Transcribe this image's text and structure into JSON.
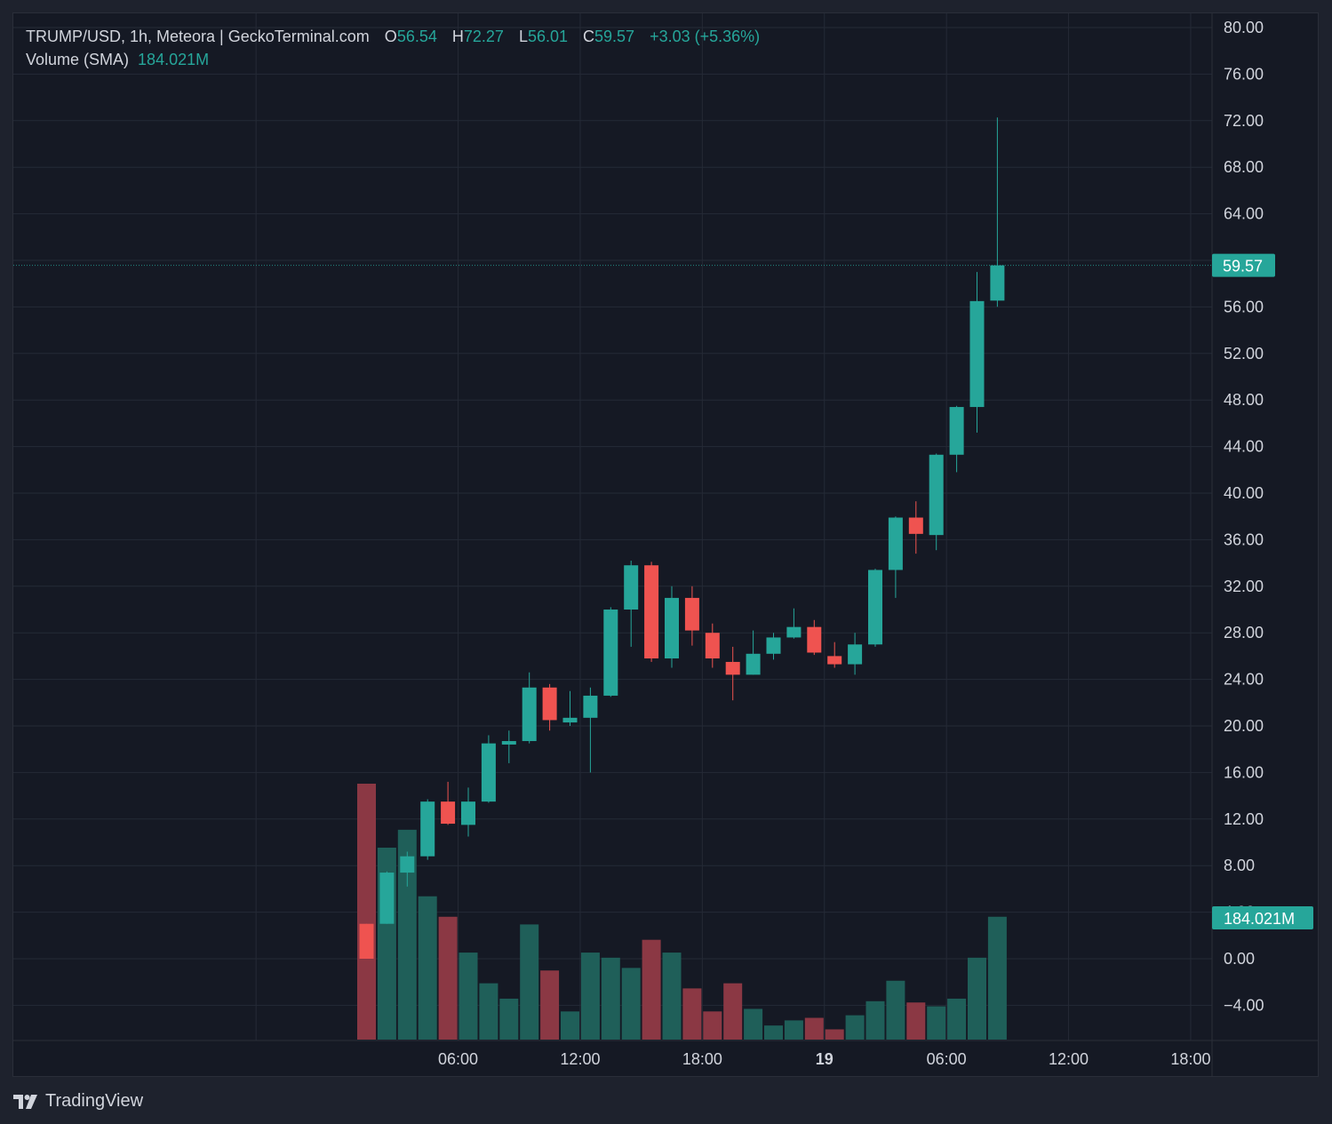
{
  "legend": {
    "symbol": "TRUMP/USD, 1h, Meteora | GeckoTerminal.com",
    "o_label": "O",
    "o": "56.54",
    "h_label": "H",
    "h": "72.27",
    "l_label": "L",
    "l": "56.01",
    "c_label": "C",
    "c": "59.57",
    "change": "+3.03 (+5.36%)",
    "volume_label": "Volume (SMA)",
    "volume_value": "184.021M"
  },
  "branding": {
    "name": "TradingView"
  },
  "colors": {
    "up": "#26a69a",
    "down": "#ef5350",
    "vol_up": "#1f5f59",
    "vol_down": "#8b3844",
    "grid": "#252a36",
    "text": "#d1d4dc",
    "bg": "#151924"
  },
  "chart_data": {
    "type": "candlestick",
    "interval": "1h",
    "y_ticks": [
      "80.00",
      "76.00",
      "72.00",
      "68.00",
      "64.00",
      "56.00",
      "52.00",
      "48.00",
      "44.00",
      "40.00",
      "36.00",
      "32.00",
      "28.00",
      "24.00",
      "20.00",
      "16.00",
      "12.00",
      "8.00",
      "0.00",
      "−4.00"
    ],
    "y_tick_values": [
      80,
      76,
      72,
      68,
      64,
      56,
      52,
      48,
      44,
      40,
      36,
      32,
      28,
      24,
      20,
      16,
      12,
      8,
      0,
      -4
    ],
    "ylim": [
      -7,
      81
    ],
    "x_ticks": [
      {
        "label": "06:00",
        "bar": 4.5,
        "bold": false
      },
      {
        "label": "12:00",
        "bar": 10.5,
        "bold": false
      },
      {
        "label": "18:00",
        "bar": 16.5,
        "bold": false
      },
      {
        "label": "19",
        "bar": 22.5,
        "bold": true
      },
      {
        "label": "06:00",
        "bar": 28.5,
        "bold": false
      },
      {
        "label": "12:00",
        "bar": 34.5,
        "bold": false
      },
      {
        "label": "18:00",
        "bar": 40.5,
        "bold": false
      }
    ],
    "last_price": {
      "label": "59.57",
      "value": 59.57
    },
    "last_volume": {
      "label": "184.021M"
    },
    "candles": [
      {
        "o": 3,
        "h": 3,
        "l": 0,
        "c": 0
      },
      {
        "o": 3.0,
        "h": 7.5,
        "l": 3.0,
        "c": 7.4
      },
      {
        "o": 7.4,
        "h": 9.2,
        "l": 6.2,
        "c": 8.8
      },
      {
        "o": 8.8,
        "h": 13.7,
        "l": 8.5,
        "c": 13.5
      },
      {
        "o": 13.5,
        "h": 15.2,
        "l": 11.5,
        "c": 11.6
      },
      {
        "o": 11.5,
        "h": 14.7,
        "l": 10.5,
        "c": 13.5
      },
      {
        "o": 13.5,
        "h": 19.2,
        "l": 13.4,
        "c": 18.5
      },
      {
        "o": 18.4,
        "h": 19.6,
        "l": 16.8,
        "c": 18.7
      },
      {
        "o": 18.7,
        "h": 24.6,
        "l": 18.5,
        "c": 23.3
      },
      {
        "o": 23.3,
        "h": 23.6,
        "l": 19.6,
        "c": 20.5
      },
      {
        "o": 20.3,
        "h": 23.0,
        "l": 20.0,
        "c": 20.7
      },
      {
        "o": 20.7,
        "h": 23.3,
        "l": 16.0,
        "c": 22.6
      },
      {
        "o": 22.6,
        "h": 30.2,
        "l": 22.5,
        "c": 30.0
      },
      {
        "o": 30.0,
        "h": 34.2,
        "l": 26.8,
        "c": 33.8
      },
      {
        "o": 33.8,
        "h": 34.1,
        "l": 25.5,
        "c": 25.8
      },
      {
        "o": 25.8,
        "h": 32.0,
        "l": 25.0,
        "c": 31.0
      },
      {
        "o": 31.0,
        "h": 32.0,
        "l": 26.9,
        "c": 28.2
      },
      {
        "o": 28.0,
        "h": 28.8,
        "l": 25.0,
        "c": 25.8
      },
      {
        "o": 25.5,
        "h": 26.8,
        "l": 22.2,
        "c": 24.4
      },
      {
        "o": 24.4,
        "h": 28.2,
        "l": 24.4,
        "c": 26.2
      },
      {
        "o": 26.2,
        "h": 28.0,
        "l": 25.7,
        "c": 27.6
      },
      {
        "o": 27.6,
        "h": 30.1,
        "l": 27.5,
        "c": 28.5
      },
      {
        "o": 28.5,
        "h": 29.1,
        "l": 26.1,
        "c": 26.3
      },
      {
        "o": 26.0,
        "h": 27.2,
        "l": 25.0,
        "c": 25.3
      },
      {
        "o": 25.3,
        "h": 28.0,
        "l": 24.4,
        "c": 27.0
      },
      {
        "o": 27.0,
        "h": 33.5,
        "l": 26.8,
        "c": 33.4
      },
      {
        "o": 33.4,
        "h": 38.0,
        "l": 31.0,
        "c": 37.9
      },
      {
        "o": 37.9,
        "h": 39.3,
        "l": 34.8,
        "c": 36.5
      },
      {
        "o": 36.4,
        "h": 43.4,
        "l": 35.1,
        "c": 43.3
      },
      {
        "o": 43.3,
        "h": 47.5,
        "l": 41.8,
        "c": 47.4
      },
      {
        "o": 47.4,
        "h": 59.0,
        "l": 45.2,
        "c": 56.5
      },
      {
        "o": 56.54,
        "h": 72.27,
        "l": 56.01,
        "c": 59.57
      }
    ],
    "volume_relative": [
      1.0,
      0.75,
      0.82,
      0.56,
      0.48,
      0.34,
      0.22,
      0.16,
      0.45,
      0.27,
      0.11,
      0.34,
      0.32,
      0.28,
      0.39,
      0.34,
      0.2,
      0.11,
      0.22,
      0.12,
      0.055,
      0.075,
      0.085,
      0.04,
      0.095,
      0.15,
      0.23,
      0.145,
      0.13,
      0.16,
      0.32,
      0.48
    ]
  }
}
